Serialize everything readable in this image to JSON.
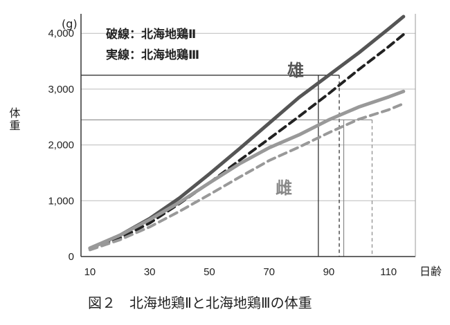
{
  "chart_data": {
    "type": "line",
    "title": "図２　北海地鶏Ⅱと北海地鶏Ⅲの体重",
    "xlabel": "日齢",
    "ylabel": "体重",
    "yunit": "(g)",
    "xlim": [
      7,
      119
    ],
    "ylim": [
      0,
      4350
    ],
    "xticks": [
      10,
      30,
      50,
      70,
      90,
      110
    ],
    "yticks": [
      0,
      1000,
      2000,
      3000,
      4000
    ],
    "ytick_labels": [
      "0",
      "1,000",
      "2,000",
      "3,000",
      "4,000"
    ],
    "grid": "horizontal",
    "legend": [
      {
        "label": "破線：北海地鶏Ⅱ",
        "style": "dashed"
      },
      {
        "label": "実線：北海地鶏Ⅲ",
        "style": "solid"
      }
    ],
    "annotations": [
      {
        "text": "雄",
        "color": "#555555"
      },
      {
        "text": "雌",
        "color": "#888888"
      }
    ],
    "series": [
      {
        "sex": "male",
        "breed": "北海地鶏Ⅲ",
        "style": "solid",
        "color": "#555555",
        "width": 5,
        "x": [
          10,
          20,
          30,
          40,
          50,
          60,
          70,
          80,
          90,
          100,
          110,
          115
        ],
        "y": [
          150,
          380,
          680,
          1050,
          1480,
          1930,
          2390,
          2850,
          3250,
          3650,
          4080,
          4300
        ]
      },
      {
        "sex": "male",
        "breed": "北海地鶏Ⅱ",
        "style": "dashed",
        "color": "#222222",
        "width": 4,
        "x": [
          10,
          20,
          30,
          40,
          50,
          60,
          70,
          80,
          90,
          100,
          110,
          115
        ],
        "y": [
          140,
          330,
          600,
          950,
          1320,
          1720,
          2110,
          2510,
          2920,
          3350,
          3760,
          3980
        ]
      },
      {
        "sex": "female",
        "breed": "北海地鶏Ⅲ",
        "style": "solid",
        "color": "#999999",
        "width": 5,
        "x": [
          10,
          20,
          30,
          40,
          50,
          60,
          70,
          80,
          90,
          100,
          110,
          115
        ],
        "y": [
          150,
          380,
          660,
          970,
          1320,
          1660,
          1950,
          2180,
          2450,
          2680,
          2860,
          2960
        ]
      },
      {
        "sex": "female",
        "breed": "北海地鶏Ⅱ",
        "style": "dashed",
        "color": "#999999",
        "width": 4,
        "x": [
          10,
          20,
          30,
          40,
          50,
          60,
          70,
          80,
          90,
          100,
          110,
          115
        ],
        "y": [
          120,
          300,
          530,
          810,
          1110,
          1420,
          1720,
          1960,
          2220,
          2460,
          2630,
          2740
        ]
      }
    ],
    "reference_lines": [
      {
        "breed": "北海地鶏Ⅲ",
        "style": "solid",
        "sex": "male",
        "y": 3250,
        "x": 86.5
      },
      {
        "breed": "北海地鶏Ⅱ",
        "style": "dashed",
        "sex": "male",
        "y": 3250,
        "x": 93.5
      },
      {
        "breed": "北海地鶏Ⅲ",
        "style": "solid",
        "sex": "female",
        "y": 2450,
        "x": 95
      },
      {
        "breed": "北海地鶏Ⅱ",
        "style": "dashed",
        "sex": "female",
        "y": 2450,
        "x": 104.5
      }
    ]
  }
}
